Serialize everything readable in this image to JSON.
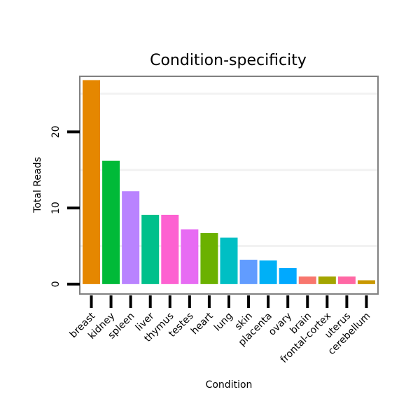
{
  "chart_data": {
    "type": "bar",
    "title": "Condition-specificity",
    "xlabel": "Condition",
    "ylabel": "Total Reads",
    "categories": [
      "breast",
      "kidney",
      "spleen",
      "liver",
      "thymus",
      "testes",
      "heart",
      "lung",
      "skin",
      "placenta",
      "ovary",
      "brain",
      "frontal-cortex",
      "uterus",
      "cerebellum"
    ],
    "values": [
      26.8,
      16.2,
      12.2,
      9.1,
      9.1,
      7.2,
      6.7,
      6.1,
      3.2,
      3.1,
      2.1,
      1.0,
      1.0,
      1.0,
      0.5
    ],
    "colors": [
      "#E58700",
      "#00BA38",
      "#B983FF",
      "#00C08B",
      "#FD61D1",
      "#E76BF3",
      "#6BB100",
      "#00BFC4",
      "#619CFF",
      "#00B0F6",
      "#00A9FF",
      "#F8766D",
      "#A3A500",
      "#FF67A4",
      "#C99800"
    ],
    "yticks": [
      0,
      10,
      20
    ],
    "ylim": [
      -1.3,
      27.3
    ],
    "grid": true
  }
}
